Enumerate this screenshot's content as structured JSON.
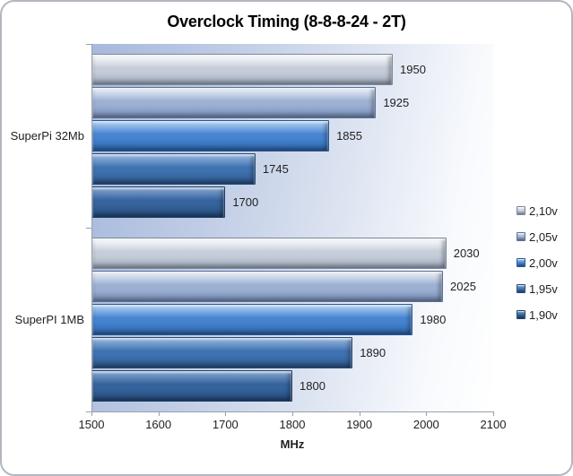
{
  "frame": {
    "border_color": "#b2b7bf",
    "background": "#ffffff"
  },
  "chart_data": {
    "type": "bar",
    "orientation": "horizontal",
    "title": "Overclock Timing (8-8-8-24 - 2T)",
    "xlabel": "MHz",
    "xlim": [
      1500,
      2100
    ],
    "xticks": [
      "1500",
      "1600",
      "1700",
      "1800",
      "1900",
      "2000",
      "2100"
    ],
    "categories": [
      "SuperPi 32Mb",
      "SuperPI 1MB"
    ],
    "series": [
      {
        "name": "2,10v",
        "values": [
          1950,
          2030
        ],
        "fill": {
          "light": "#f2f5f8",
          "mid": "#c6cdd9",
          "dark": "#a2adc0",
          "border": "#7d899e"
        }
      },
      {
        "name": "2,05v",
        "values": [
          1925,
          2025
        ],
        "fill": {
          "light": "#dce5f2",
          "mid": "#9db0d2",
          "dark": "#7b92bb",
          "border": "#5a7099"
        }
      },
      {
        "name": "2,00v",
        "values": [
          1855,
          1980
        ],
        "fill": {
          "light": "#9dc3ec",
          "mid": "#4684d0",
          "dark": "#2f68b0",
          "border": "#275795"
        }
      },
      {
        "name": "1,95v",
        "values": [
          1745,
          1890
        ],
        "fill": {
          "light": "#86aad8",
          "mid": "#3f72b0",
          "dark": "#2e598d",
          "border": "#264b78"
        }
      },
      {
        "name": "1,90v",
        "values": [
          1700,
          1800
        ],
        "fill": {
          "light": "#7499c7",
          "mid": "#35639c",
          "dark": "#264d7d",
          "border": "#1f4066"
        }
      }
    ],
    "data_labels": true,
    "grid": false,
    "legend_position": "right",
    "axis_color": "#98a0ab",
    "plot_background": {
      "from": "#a6b9dc",
      "to": "#ffffff"
    }
  }
}
